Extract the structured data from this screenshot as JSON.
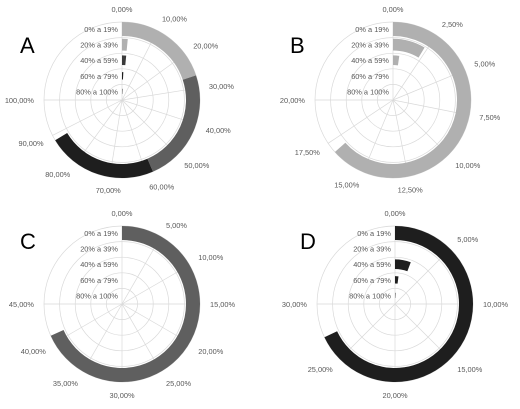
{
  "chart_data": [
    {
      "type": "radial-bar",
      "label": "A",
      "color": "#bdbdbd",
      "categories": [
        "0% a 19%",
        "20% a 39%",
        "40% a 59%",
        "60% a 79%",
        "80% a 100%"
      ],
      "values": [
        26.5,
        2.0,
        2.0,
        1.0,
        0.3
      ],
      "bar_colors": [
        "#b0b0b0",
        "#b0b0b0",
        "#3a3a3a",
        "#1e1e1e",
        "#1e1e1e"
      ],
      "outer_segments": [
        {
          "from": 0,
          "to": 26.5,
          "color": "#b0b0b0"
        },
        {
          "from": 26.5,
          "to": 58,
          "color": "#5f5f5f"
        },
        {
          "from": 58,
          "to": 88.5,
          "color": "#1e1e1e"
        }
      ],
      "ticks": [
        "0,00%",
        "10,00%",
        "20,00%",
        "30,00%",
        "40,00%",
        "50,00%",
        "60,00%",
        "70,00%",
        "80,00%",
        "90,00%",
        "100,00%"
      ],
      "max": 100
    },
    {
      "type": "radial-bar",
      "label": "B",
      "categories": [
        "0% a 19%",
        "20% a 39%",
        "40% a 59%",
        "60% a 79%",
        "80% a 100%"
      ],
      "values": [
        16.9,
        2.3,
        0.6,
        0.0,
        0.0
      ],
      "bar_colors": [
        "#b0b0b0",
        "#b0b0b0",
        "#b0b0b0",
        "#b0b0b0",
        "#b0b0b0"
      ],
      "ticks": [
        "0,00%",
        "2,50%",
        "5,00%",
        "7,50%",
        "10,00%",
        "12,50%",
        "15,00%",
        "17,50%",
        "20,00%"
      ],
      "max": 20
    },
    {
      "type": "radial-bar",
      "label": "C",
      "categories": [
        "0% a 19%",
        "20% a 39%",
        "40% a 59%",
        "60% a 79%",
        "80% a 100%"
      ],
      "values": [
        41.0,
        0.0,
        0.0,
        0.0,
        0.0
      ],
      "bar_colors": [
        "#5f5f5f",
        "#5f5f5f",
        "#5f5f5f",
        "#5f5f5f",
        "#5f5f5f"
      ],
      "ticks": [
        "0,00%",
        "5,00%",
        "10,00%",
        "15,00%",
        "20,00%",
        "25,00%",
        "30,00%",
        "35,00%",
        "40,00%",
        "45,00%"
      ],
      "max": 45
    },
    {
      "type": "radial-bar",
      "label": "D",
      "categories": [
        "0% a 19%",
        "20% a 39%",
        "40% a 59%",
        "60% a 79%",
        "80% a 100%"
      ],
      "values": [
        27.2,
        0.0,
        2.3,
        0.8,
        0.2
      ],
      "bar_colors": [
        "#1e1e1e",
        "#1e1e1e",
        "#1e1e1e",
        "#1e1e1e",
        "#1e1e1e"
      ],
      "ticks": [
        "0,00%",
        "5,00%",
        "10,00%",
        "15,00%",
        "20,00%",
        "25,00%",
        "30,00%"
      ],
      "max": 30
    }
  ]
}
